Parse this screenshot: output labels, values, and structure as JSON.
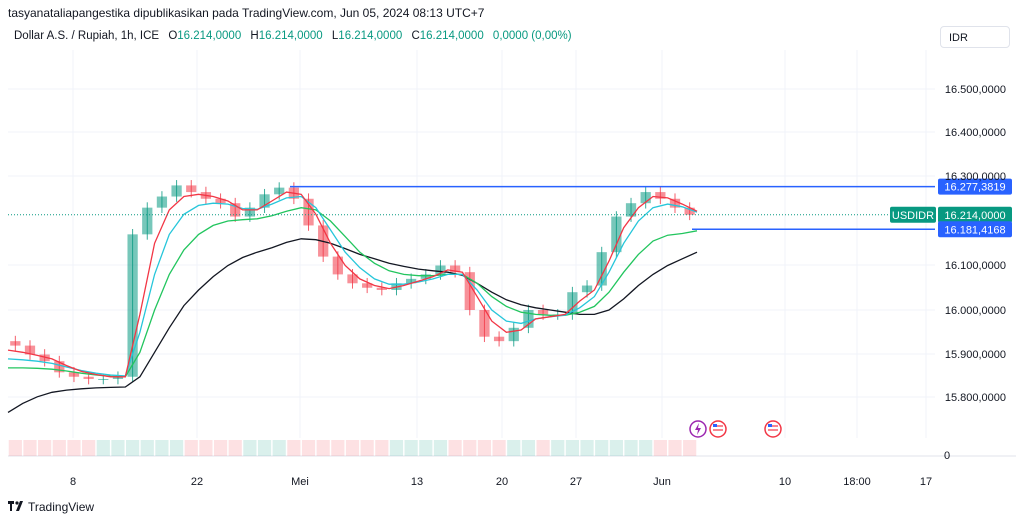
{
  "header": {
    "publisher_line": "tasyanataliapangestika dipublikasikan pada TradingView.com, Jun 05, 2024 08:13 UTC+7"
  },
  "legend": {
    "symbol": "Dollar A.S. / Rupiah, 1h, ICE",
    "open_label": "O",
    "open": "16.214,0000",
    "high_label": "H",
    "high": "16.214,0000",
    "low_label": "L",
    "low": "16.214,0000",
    "close_label": "C",
    "close": "16.214,0000",
    "change": "0,0000 (0,00%)"
  },
  "currency_button": "IDR",
  "brand": {
    "name": "TradingView",
    "logo_icon": "tradingview-logo-icon"
  },
  "colors": {
    "ema_fast": "#f23645",
    "ema_mid": "#26c6da",
    "ema_slow": "#22c55e",
    "ema_long": "#131722",
    "level_line": "#2962ff",
    "current_price": "#089981",
    "candle_up": "#089981",
    "candle_down": "#f23645"
  },
  "chart_data": {
    "type": "line",
    "symbol": "USDIDR",
    "y_ticks": [
      "16.500,0000",
      "16.400,0000",
      "16.300,0000",
      "16.100,0000",
      "16.000,0000",
      "15.900,0000",
      "15.800,0000"
    ],
    "ylim": [
      15740,
      16560
    ],
    "x_ticks": [
      "8",
      "22",
      "Mei",
      "13",
      "20",
      "27",
      "Jun",
      "10",
      "18:00",
      "17"
    ],
    "volume_axis_label": "0",
    "current_price": {
      "label": "USDIDR",
      "value": 16214,
      "text": "16.214,0000"
    },
    "levels": [
      {
        "value": 16277.3819,
        "text": "16.277,3819"
      },
      {
        "value": 16181.4168,
        "text": "16.181,4168"
      }
    ],
    "series": [
      {
        "key": "price",
        "values": [
          15930,
          15920,
          15900,
          15885,
          15860,
          15850,
          15845,
          15845,
          15850,
          16170,
          16230,
          16255,
          16280,
          16265,
          16250,
          16240,
          16210,
          16230,
          16260,
          16275,
          16250,
          16190,
          16120,
          16080,
          16060,
          16050,
          16045,
          16060,
          16070,
          16080,
          16100,
          16085,
          16000,
          15940,
          15930,
          15960,
          16000,
          15990,
          15990,
          16040,
          16055,
          16130,
          16210,
          16240,
          16265,
          16250,
          16230,
          16214
        ]
      },
      {
        "key": "ema_fast",
        "values": [
          15910,
          15905,
          15898,
          15890,
          15875,
          15862,
          15855,
          15850,
          15850,
          15990,
          16150,
          16225,
          16255,
          16260,
          16255,
          16245,
          16225,
          16225,
          16245,
          16265,
          16260,
          16215,
          16150,
          16100,
          16070,
          16055,
          16048,
          16055,
          16065,
          16075,
          16090,
          16085,
          16030,
          15975,
          15950,
          15955,
          15980,
          15985,
          15990,
          16020,
          16045,
          16110,
          16185,
          16230,
          16255,
          16252,
          16238,
          16222
        ]
      },
      {
        "key": "ema_mid",
        "values": [
          15890,
          15888,
          15885,
          15880,
          15872,
          15864,
          15858,
          15854,
          15852,
          15950,
          16080,
          16170,
          16215,
          16235,
          16240,
          16238,
          16228,
          16226,
          16238,
          16252,
          16255,
          16230,
          16180,
          16130,
          16095,
          16070,
          16058,
          16058,
          16063,
          16070,
          16080,
          16080,
          16045,
          16000,
          15975,
          15970,
          15980,
          15985,
          15988,
          16005,
          16030,
          16085,
          16150,
          16200,
          16230,
          16238,
          16232,
          16220
        ]
      },
      {
        "key": "ema_slow",
        "values": [
          15870,
          15870,
          15869,
          15867,
          15863,
          15858,
          15854,
          15851,
          15850,
          15905,
          16000,
          16080,
          16135,
          16170,
          16190,
          16200,
          16203,
          16205,
          16212,
          16222,
          16230,
          16225,
          16200,
          16165,
          16130,
          16105,
          16088,
          16080,
          16077,
          16077,
          16080,
          16080,
          16060,
          16030,
          16008,
          15995,
          15990,
          15988,
          15988,
          15995,
          16008,
          16040,
          16085,
          16125,
          16155,
          16168,
          16172,
          16178
        ]
      },
      {
        "key": "ema_long",
        "values": [
          15770,
          15790,
          15805,
          15815,
          15820,
          15823,
          15825,
          15826,
          15827,
          15850,
          15905,
          15960,
          16010,
          16045,
          16075,
          16100,
          16118,
          16130,
          16140,
          16152,
          16160,
          16158,
          16150,
          16138,
          16125,
          16115,
          16105,
          16098,
          16092,
          16088,
          16085,
          16078,
          16060,
          16040,
          16023,
          16012,
          16005,
          16000,
          15995,
          15990,
          15990,
          16000,
          16025,
          16055,
          16080,
          16100,
          16115,
          16130
        ]
      }
    ],
    "grid": true,
    "legend_position": "top-left"
  }
}
